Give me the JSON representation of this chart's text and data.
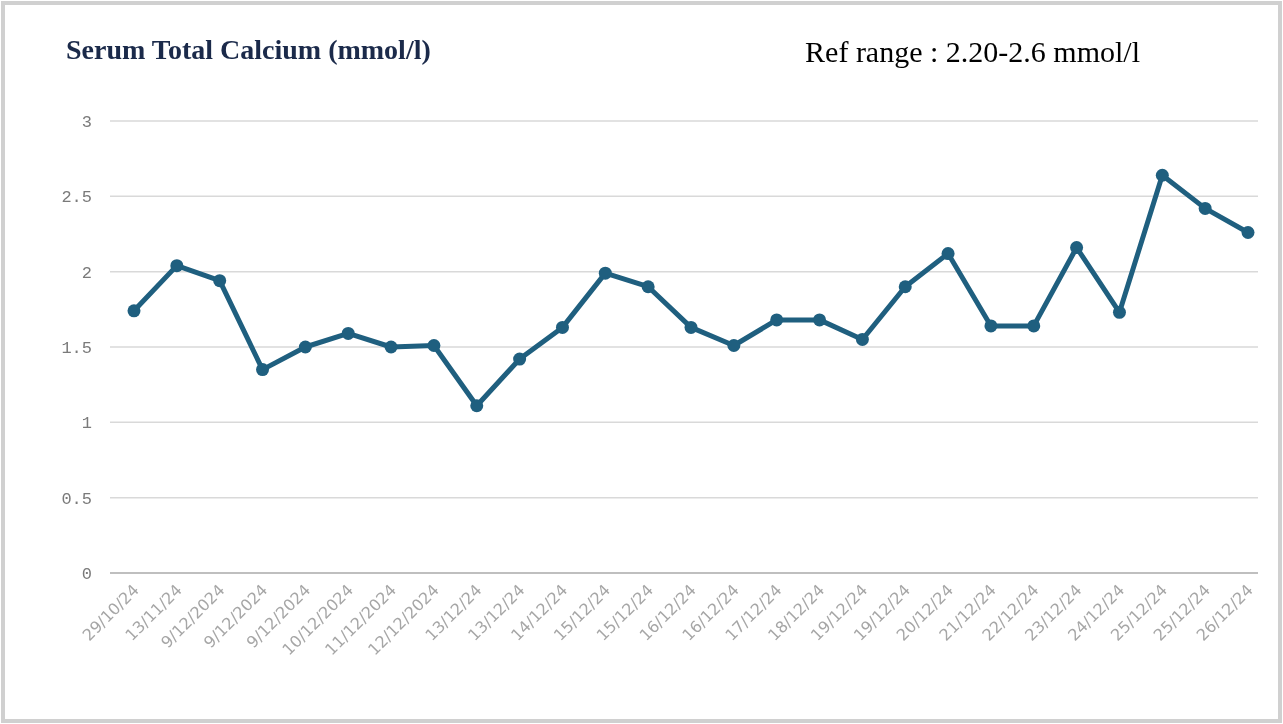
{
  "chart_data": {
    "type": "line",
    "title": "Serum Total Calcium (mmol/l)",
    "annotations": [
      "Ref range : 2.20-2.6 mmol/l"
    ],
    "categories": [
      "29/10/24",
      "13/11/24",
      "9/12/2024",
      "9/12/2024",
      "9/12/2024",
      "10/12/2024",
      "11/12/2024",
      "12/12/2024",
      "13/12/24",
      "13/12/24",
      "14/12/24",
      "15/12/24",
      "15/12/24",
      "16/12/24",
      "16/12/24",
      "17/12/24",
      "18/12/24",
      "19/12/24",
      "19/12/24",
      "20/12/24",
      "21/12/24",
      "22/12/24",
      "23/12/24",
      "24/12/24",
      "25/12/24",
      "25/12/24",
      "26/12/24"
    ],
    "series": [
      {
        "color": "#1f5f7f",
        "values": [
          1.74,
          2.04,
          1.94,
          1.35,
          1.5,
          1.59,
          1.5,
          1.51,
          1.11,
          1.42,
          1.63,
          1.99,
          1.9,
          1.63,
          1.51,
          1.68,
          1.68,
          1.55,
          1.9,
          2.12,
          1.64,
          1.64,
          2.16,
          1.73,
          2.64,
          2.42,
          2.26
        ]
      }
    ],
    "ylim": [
      0,
      3
    ],
    "yticks": [
      0,
      0.5,
      1,
      1.5,
      2,
      2.5,
      3
    ],
    "grid": "y",
    "marker": "circle",
    "line_style": "solid"
  }
}
